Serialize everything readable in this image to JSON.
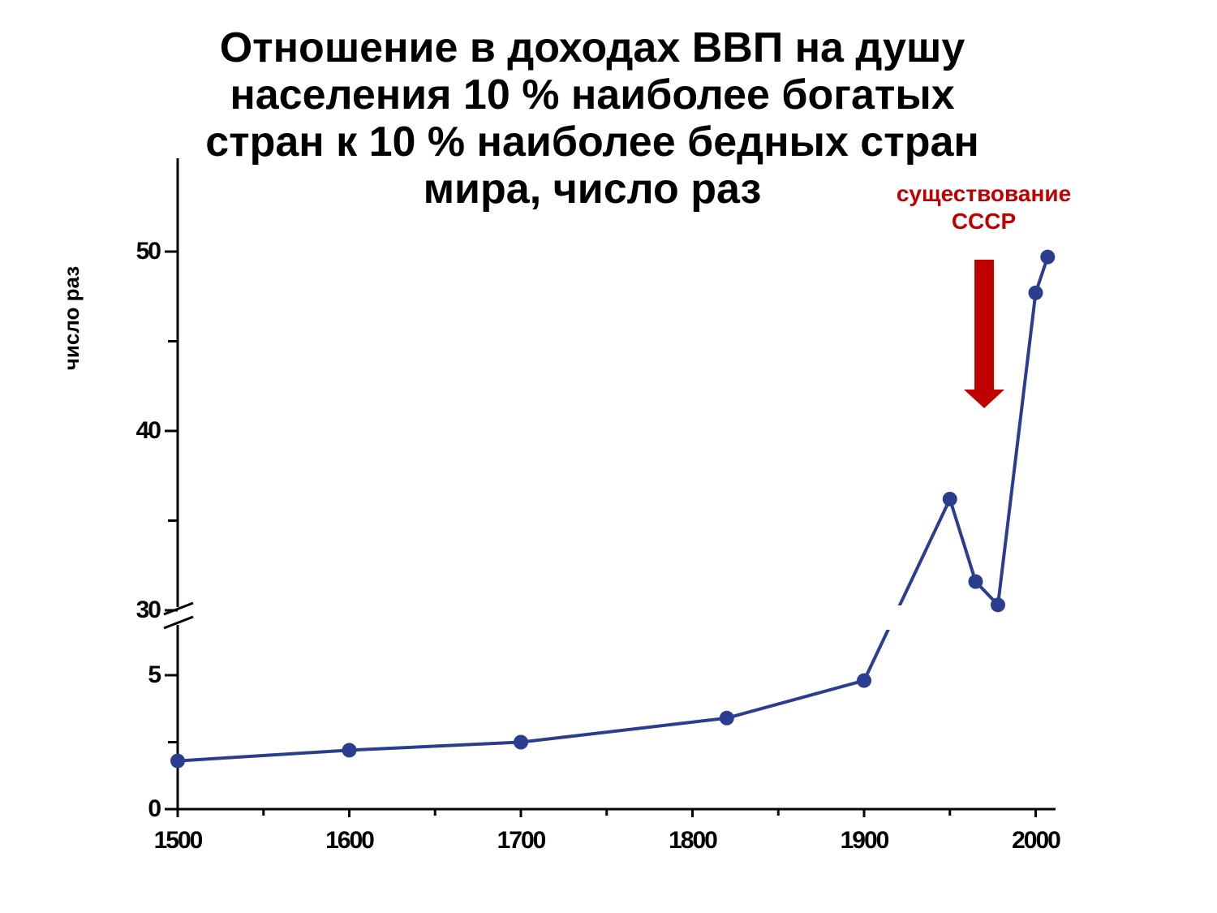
{
  "chart_data": {
    "type": "line",
    "title": "Отношение в доходах ВВП на душу\nнаселения 10 % наиболее богатых\nстран к 10 % наиболее бедных стран\nмира, число раз",
    "xlabel": "",
    "ylabel": "число раз",
    "x_ticks": [
      "1500",
      "1600",
      "1700",
      "1800",
      "1900",
      "2000"
    ],
    "y_ticks": [
      "0",
      "5",
      "30",
      "40",
      "50"
    ],
    "xlim": [
      1500,
      2010
    ],
    "ylim_lower": [
      0,
      8
    ],
    "ylim_upper": [
      30,
      55
    ],
    "axis_break": "between 8 and 30",
    "grid": false,
    "series": [
      {
        "x": [
          1500,
          1600,
          1700,
          1820,
          1900,
          1950,
          1965,
          1978,
          2000,
          2007
        ],
        "y": [
          1.8,
          2.2,
          2.5,
          3.4,
          4.8,
          36.2,
          31.6,
          30.3,
          47.7,
          49.7
        ]
      }
    ],
    "annotation": {
      "text": "существование\nСССР",
      "x": 1970,
      "color": "#c00000"
    },
    "line_color": "#2b3d8f"
  }
}
